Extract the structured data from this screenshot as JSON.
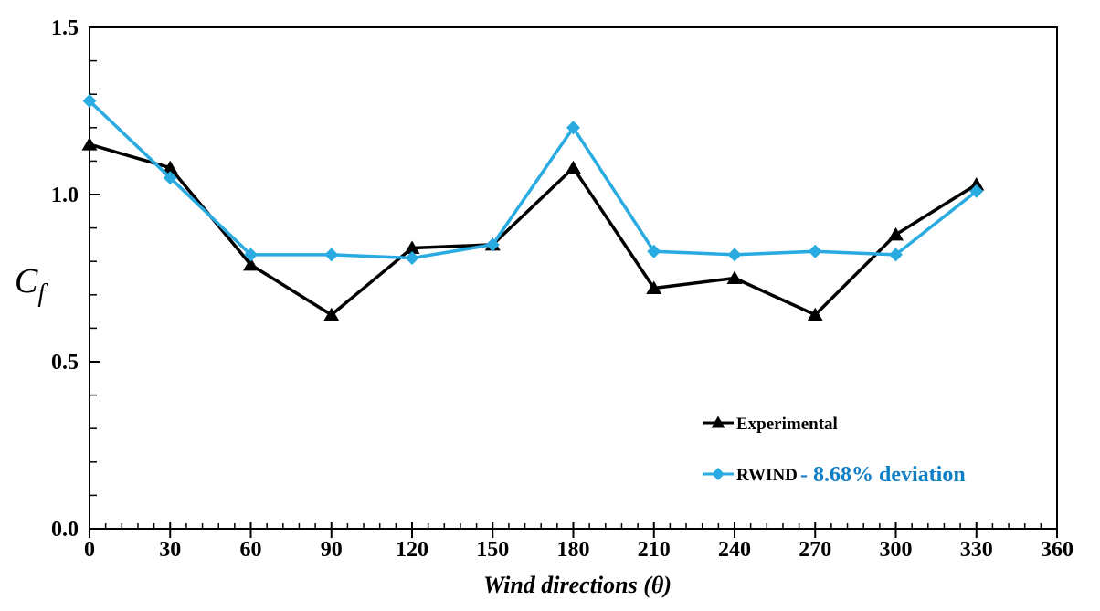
{
  "chart_data": {
    "type": "line",
    "x": [
      0,
      30,
      60,
      90,
      120,
      150,
      180,
      210,
      240,
      270,
      300,
      330
    ],
    "series": [
      {
        "name": "Experimental",
        "color": "#000000",
        "marker": "triangle",
        "values": [
          1.15,
          1.08,
          0.79,
          0.64,
          0.84,
          0.85,
          1.08,
          0.72,
          0.75,
          0.64,
          0.88,
          1.03
        ]
      },
      {
        "name": "RWIND",
        "color": "#29ABE2",
        "marker": "diamond",
        "values": [
          1.28,
          1.05,
          0.82,
          0.82,
          0.81,
          0.85,
          1.2,
          0.83,
          0.82,
          0.83,
          0.82,
          1.01
        ],
        "annotation": "- 8.68% deviation",
        "annotation_color": "#0E7FC6"
      }
    ],
    "title": "",
    "xlabel": "Wind directions (θ)",
    "ylabel": "Cf",
    "ylabel_main": "C",
    "ylabel_sub": "f",
    "xlim": [
      0,
      360
    ],
    "ylim": [
      0,
      1.5
    ],
    "x_major_step": 30,
    "x_minor_step": 6,
    "y_major_step": 0.5,
    "y_minor_step": 0.1,
    "x_ticklabels": [
      "0",
      "30",
      "60",
      "90",
      "120",
      "150",
      "180",
      "210",
      "240",
      "270",
      "300",
      "330",
      "360"
    ],
    "y_ticklabels": [
      "0.0",
      "0.5",
      "1.0",
      "1.5"
    ],
    "grid": false,
    "legend_position": "inside lower-right",
    "axis_color": "#000000",
    "background_color": "#FFFFFF"
  }
}
